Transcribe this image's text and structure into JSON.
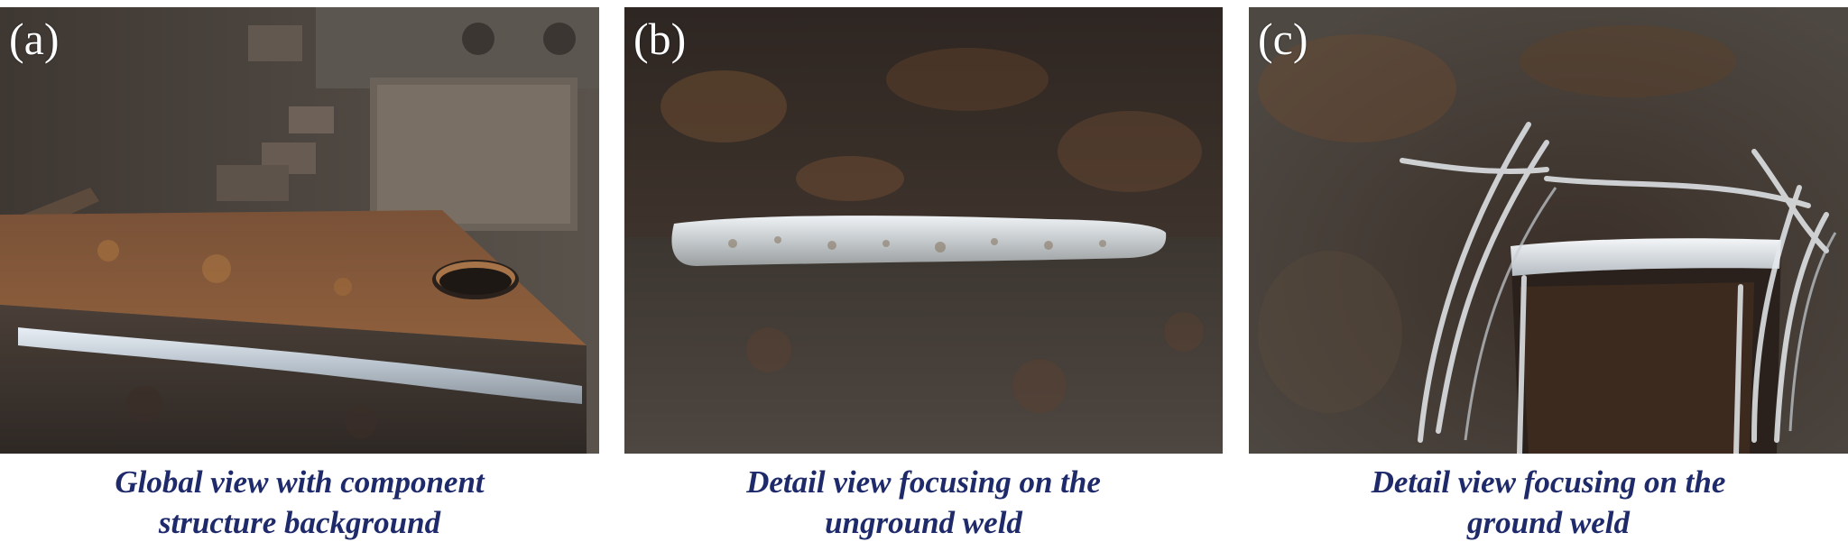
{
  "figure": {
    "caption_color": "#1f2a6b",
    "label_color": "#ffffff",
    "panels": [
      {
        "label": "(a)",
        "caption_line1": "Global view with component",
        "caption_line2": "structure background"
      },
      {
        "label": "(b)",
        "caption_line1": "Detail view focusing on the",
        "caption_line2": "unground weld"
      },
      {
        "label": "(c)",
        "caption_line1": "Detail view focusing on the",
        "caption_line2": "ground weld"
      }
    ]
  }
}
